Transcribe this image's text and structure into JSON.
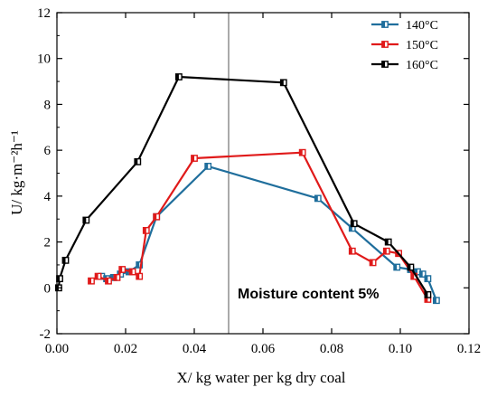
{
  "chart_data": {
    "type": "line",
    "xlabel": "X/ kg water per kg dry coal",
    "ylabel": "U/ kg·m⁻²h⁻¹",
    "xlim": [
      0,
      0.12
    ],
    "ylim": [
      -2,
      12
    ],
    "xticks": [
      "0.00",
      "0.02",
      "0.04",
      "0.06",
      "0.08",
      "0.10",
      "0.12"
    ],
    "yticks": [
      "-2",
      "0",
      "2",
      "4",
      "6",
      "8",
      "10",
      "12"
    ],
    "grid": false,
    "legend_position": "top-right",
    "reference_line": {
      "x": 0.05
    },
    "annotation": "Moisture content 5%",
    "series": [
      {
        "name": "140°C",
        "color": "#1f6e9c",
        "points": [
          [
            0.013,
            0.5
          ],
          [
            0.0145,
            0.4
          ],
          [
            0.0165,
            0.45
          ],
          [
            0.0185,
            0.6
          ],
          [
            0.021,
            0.7
          ],
          [
            0.024,
            1.0
          ],
          [
            0.029,
            3.1
          ],
          [
            0.044,
            5.3
          ],
          [
            0.076,
            3.9
          ],
          [
            0.086,
            2.6
          ],
          [
            0.099,
            0.9
          ],
          [
            0.103,
            0.8
          ],
          [
            0.105,
            0.7
          ],
          [
            0.1065,
            0.6
          ],
          [
            0.108,
            0.4
          ],
          [
            0.1105,
            -0.55
          ]
        ]
      },
      {
        "name": "150°C",
        "color": "#e01a1a",
        "points": [
          [
            0.01,
            0.3
          ],
          [
            0.012,
            0.5
          ],
          [
            0.015,
            0.3
          ],
          [
            0.0175,
            0.45
          ],
          [
            0.019,
            0.8
          ],
          [
            0.022,
            0.7
          ],
          [
            0.024,
            0.5
          ],
          [
            0.026,
            2.5
          ],
          [
            0.029,
            3.1
          ],
          [
            0.04,
            5.65
          ],
          [
            0.0715,
            5.9
          ],
          [
            0.086,
            1.6
          ],
          [
            0.092,
            1.1
          ],
          [
            0.096,
            1.6
          ],
          [
            0.0995,
            1.5
          ],
          [
            0.104,
            0.5
          ],
          [
            0.108,
            -0.5
          ]
        ]
      },
      {
        "name": "160°C",
        "color": "#000000",
        "points": [
          [
            0.0005,
            0.0
          ],
          [
            0.0008,
            0.4
          ],
          [
            0.0025,
            1.2
          ],
          [
            0.0085,
            2.95
          ],
          [
            0.0235,
            5.5
          ],
          [
            0.0355,
            9.2
          ],
          [
            0.066,
            8.95
          ],
          [
            0.0865,
            2.8
          ],
          [
            0.0965,
            2.0
          ],
          [
            0.103,
            0.9
          ],
          [
            0.108,
            -0.3
          ]
        ]
      }
    ]
  }
}
